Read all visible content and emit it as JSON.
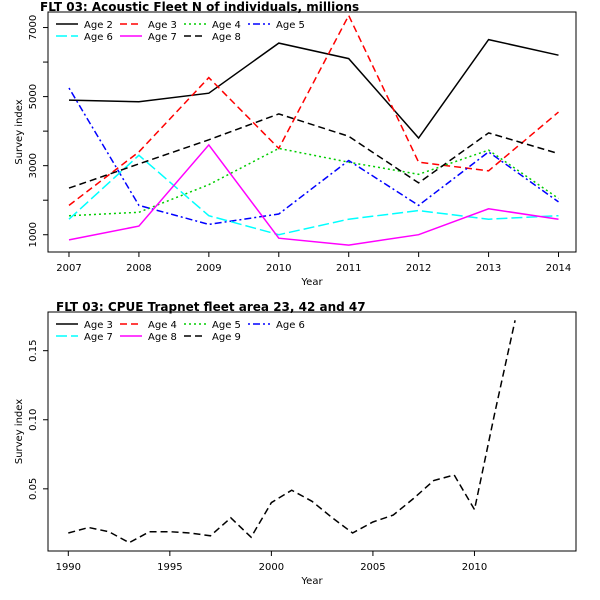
{
  "chart_data": [
    {
      "type": "line",
      "title": "FLT 03: Acoustic Fleet   N of individuals, millions",
      "xlabel": "Year",
      "ylabel": "Survey index",
      "x": [
        2007,
        2008,
        2009,
        2010,
        2011,
        2012,
        2013,
        2014
      ],
      "xticks": [
        "2007",
        "2008",
        "2009",
        "2010",
        "2011",
        "2012",
        "2013",
        "2014"
      ],
      "xlim": [
        2006.7,
        2014.25
      ],
      "yticks": [
        "1000",
        "3000",
        "5000",
        "7000"
      ],
      "ylim": [
        500,
        7450
      ],
      "legend": "top-left",
      "series": [
        {
          "name": "Age 2",
          "color": "#000000",
          "dash": "solid",
          "values": [
            4900,
            4850,
            5100,
            6550,
            6100,
            3800,
            6650,
            6200
          ]
        },
        {
          "name": "Age 3",
          "color": "#ff0000",
          "dash": "dashed",
          "values": [
            1850,
            3400,
            5550,
            3500,
            7350,
            3100,
            2850,
            4550
          ]
        },
        {
          "name": "Age 4",
          "color": "#00cd00",
          "dash": "dotted",
          "values": [
            1550,
            1650,
            2450,
            3500,
            3100,
            2750,
            3450,
            2050
          ]
        },
        {
          "name": "Age 5",
          "color": "#0000ff",
          "dash": "dotdash",
          "values": [
            5250,
            1850,
            1300,
            1600,
            3150,
            1850,
            3400,
            1950
          ]
        },
        {
          "name": "Age 6",
          "color": "#00ffff",
          "dash": "longdash",
          "values": [
            1450,
            3300,
            1550,
            1000,
            1450,
            1700,
            1450,
            1550
          ]
        },
        {
          "name": "Age 7",
          "color": "#ff00ff",
          "dash": "solid",
          "values": [
            850,
            1250,
            3600,
            900,
            700,
            1000,
            1750,
            1450
          ]
        },
        {
          "name": "Age 8",
          "color": "#000000",
          "dash": "dashed",
          "values": [
            2350,
            3050,
            3750,
            4500,
            3850,
            2500,
            3950,
            3350
          ]
        }
      ]
    },
    {
      "type": "line",
      "title": "FLT 03: CPUE Trapnet fleet area 23, 42 and 47",
      "xlabel": "Year",
      "ylabel": "Survey index",
      "x": [
        1990,
        1991,
        1992,
        1993,
        1994,
        1995,
        1996,
        1997,
        1998,
        1999,
        2000,
        2001,
        2002,
        2003,
        2004,
        2005,
        2006,
        2007,
        2008,
        2009,
        2010,
        2011,
        2012
      ],
      "xticks": [
        "1990",
        "1995",
        "2000",
        "2005",
        "2010"
      ],
      "xlim": [
        1989,
        2015
      ],
      "yticks": [
        "0.05",
        "0.10",
        "0.15"
      ],
      "ylim": [
        0.005,
        0.178
      ],
      "legend": "top-left",
      "legend_entries": [
        {
          "name": "Age 3",
          "color": "#000000",
          "dash": "solid"
        },
        {
          "name": "Age 4",
          "color": "#ff0000",
          "dash": "dashed"
        },
        {
          "name": "Age 5",
          "color": "#00cd00",
          "dash": "dotted"
        },
        {
          "name": "Age 6",
          "color": "#0000ff",
          "dash": "dotdash"
        },
        {
          "name": "Age 7",
          "color": "#00ffff",
          "dash": "longdash"
        },
        {
          "name": "Age 8",
          "color": "#ff00ff",
          "dash": "solid"
        },
        {
          "name": "Age 9",
          "color": "#000000",
          "dash": "dashed"
        }
      ],
      "series": [
        {
          "name": "Age 9",
          "color": "#000000",
          "dash": "dashed",
          "values": [
            0.018,
            0.022,
            0.019,
            0.011,
            0.019,
            0.019,
            0.018,
            0.016,
            0.029,
            0.015,
            0.04,
            0.049,
            0.041,
            0.029,
            0.018,
            0.026,
            0.031,
            0.043,
            0.056,
            0.06,
            0.035,
            0.105,
            0.172
          ]
        }
      ]
    }
  ]
}
